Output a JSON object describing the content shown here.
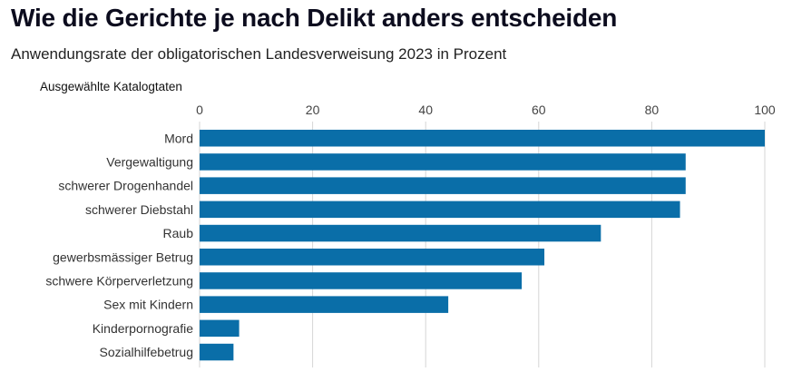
{
  "header": {
    "title": "Wie die Gerichte je nach Delikt anders entscheiden",
    "subtitle": "Anwendungsrate der obligatorischen Landesverweisung 2023 in Prozent"
  },
  "chart_data": {
    "type": "bar",
    "orientation": "horizontal",
    "title": "Wie die Gerichte je nach Delikt anders entscheiden",
    "subtitle": "Anwendungsrate der obligatorischen Landesverweisung 2023 in Prozent",
    "category_header": "Ausgewählte Katalogtaten",
    "categories": [
      "Mord",
      "Vergewaltigung",
      "schwerer Drogenhandel",
      "schwerer Diebstahl",
      "Raub",
      "gewerbsmässiger Betrug",
      "schwere Körperverletzung",
      "Sex mit Kindern",
      "Kinderpornografie",
      "Sozialhilfebetrug"
    ],
    "values": [
      100,
      86,
      86,
      85,
      71,
      61,
      57,
      44,
      7,
      6
    ],
    "xlim": [
      0,
      100
    ],
    "xticks": [
      0,
      20,
      40,
      60,
      80,
      100
    ],
    "xtick_labels": [
      "0",
      "20",
      "40",
      "60",
      "80",
      "100"
    ],
    "axis_position": "top",
    "grid": true,
    "bar_color": "#0a6ea8",
    "grid_color": "#d6d6d6"
  }
}
